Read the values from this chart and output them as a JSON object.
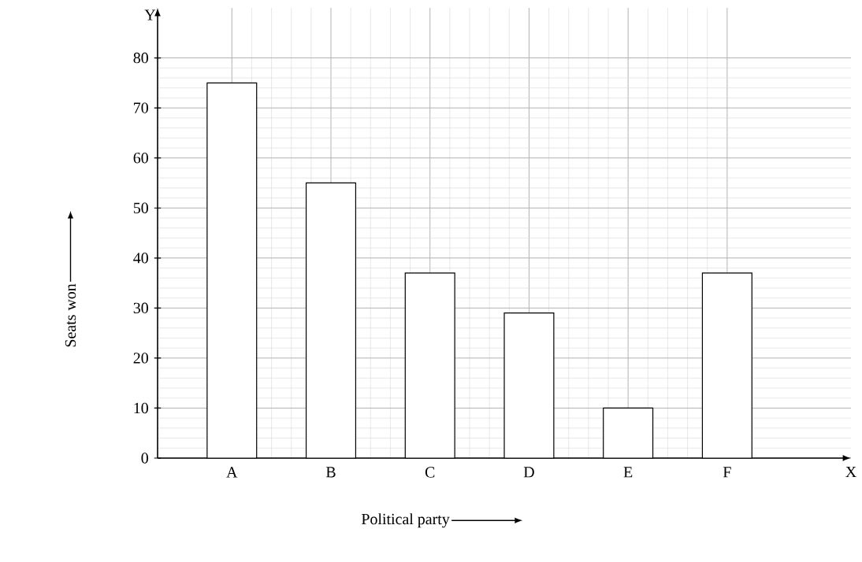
{
  "chart_data": {
    "type": "bar",
    "xlabel": "Political party",
    "ylabel": "Seats won",
    "categories": [
      "A",
      "B",
      "C",
      "D",
      "E",
      "F"
    ],
    "values": [
      75,
      55,
      37,
      29,
      10,
      37
    ],
    "color": "#ffffff",
    "ylim": [
      0,
      90
    ],
    "yticks": [
      0,
      10,
      20,
      30,
      40,
      50,
      60,
      70,
      80
    ],
    "grid": true,
    "annotations": [
      "Y",
      "X"
    ]
  }
}
